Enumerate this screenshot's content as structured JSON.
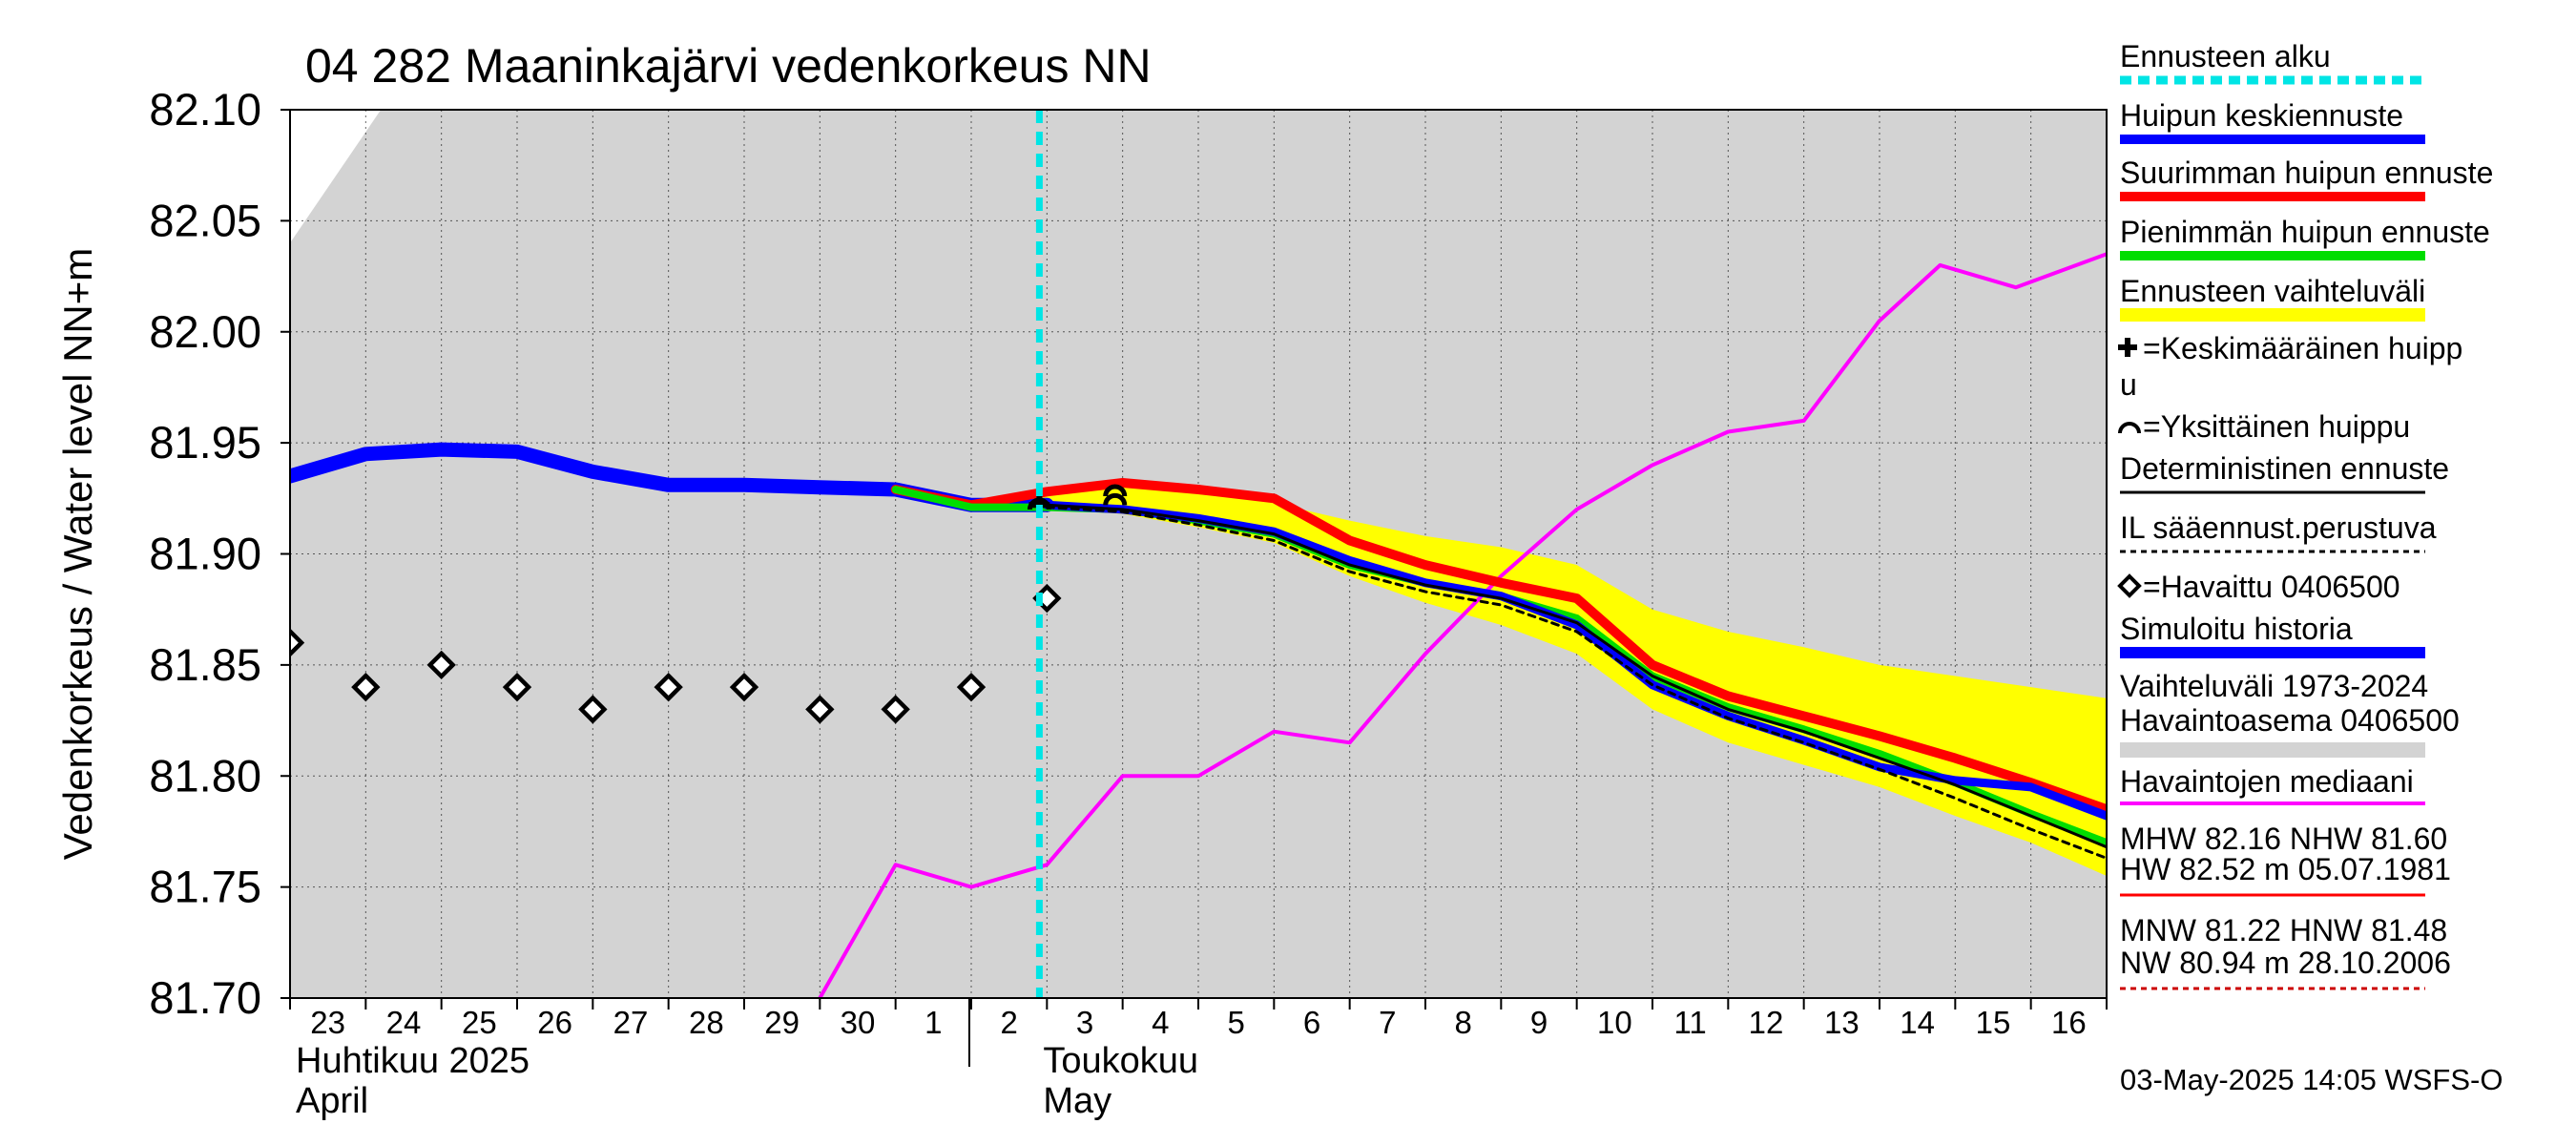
{
  "chart_data": {
    "type": "line",
    "title": "04 282 Maaninkajärvi vedenkorkeus NN",
    "ylabel": "Vedenkorkeus / Water level    NN+m",
    "ylim": [
      81.7,
      82.1
    ],
    "yticks": [
      "81.70",
      "81.75",
      "81.80",
      "81.85",
      "81.90",
      "81.95",
      "82.00",
      "82.05",
      "82.10"
    ],
    "x_start_day": 23,
    "x_end_day": 47,
    "x_tick_labels": [
      "23",
      "24",
      "25",
      "26",
      "27",
      "28",
      "29",
      "30",
      "1",
      "2",
      "3",
      "4",
      "5",
      "6",
      "7",
      "8",
      "9",
      "10",
      "11",
      "12",
      "13",
      "14",
      "15",
      "16"
    ],
    "months": [
      {
        "fi": "Huhtikuu  2025",
        "en": "April",
        "day": 23
      },
      {
        "fi": "Toukokuu",
        "en": "May",
        "day": 32
      }
    ],
    "forecast_start_day": 32.9,
    "historical_band": {
      "upper": [
        [
          23,
          82.04
        ],
        [
          24.2,
          82.1
        ],
        [
          47,
          82.1
        ]
      ],
      "lower": [
        [
          23,
          81.7
        ],
        [
          47,
          81.7
        ]
      ]
    },
    "forecast_band": {
      "upper": [
        [
          31,
          81.928
        ],
        [
          32,
          81.922
        ],
        [
          33,
          81.928
        ],
        [
          34,
          81.932
        ],
        [
          35,
          81.929
        ],
        [
          36,
          81.923
        ],
        [
          37,
          81.915
        ],
        [
          38,
          81.908
        ],
        [
          39,
          81.903
        ],
        [
          40,
          81.895
        ],
        [
          41,
          81.875
        ],
        [
          42,
          81.865
        ],
        [
          43,
          81.858
        ],
        [
          44,
          81.85
        ],
        [
          45,
          81.845
        ],
        [
          46,
          81.84
        ],
        [
          47,
          81.835
        ]
      ],
      "lower": [
        [
          31,
          81.928
        ],
        [
          32,
          81.92
        ],
        [
          33,
          81.92
        ],
        [
          34,
          81.918
        ],
        [
          35,
          81.912
        ],
        [
          36,
          81.905
        ],
        [
          37,
          81.89
        ],
        [
          38,
          81.878
        ],
        [
          39,
          81.868
        ],
        [
          40,
          81.855
        ],
        [
          41,
          81.83
        ],
        [
          42,
          81.815
        ],
        [
          43,
          81.805
        ],
        [
          44,
          81.795
        ],
        [
          45,
          81.782
        ],
        [
          46,
          81.77
        ],
        [
          47,
          81.755
        ]
      ]
    },
    "series": [
      {
        "name": "Havaintojen mediaani",
        "color": "#ff00ff",
        "points": [
          [
            30,
            81.7
          ],
          [
            31,
            81.76
          ],
          [
            32,
            81.75
          ],
          [
            33,
            81.76
          ],
          [
            34,
            81.8
          ],
          [
            35,
            81.8
          ],
          [
            36,
            81.82
          ],
          [
            37,
            81.815
          ],
          [
            38,
            81.855
          ],
          [
            39,
            81.89
          ],
          [
            40,
            81.92
          ],
          [
            41,
            81.94
          ],
          [
            42,
            81.955
          ],
          [
            43,
            81.96
          ],
          [
            44,
            82.005
          ],
          [
            44.8,
            82.03
          ],
          [
            45.8,
            82.02
          ],
          [
            47,
            82.035
          ]
        ]
      },
      {
        "name": "Simuloitu historia",
        "color": "#0000ff",
        "points": [
          [
            23,
            81.935
          ],
          [
            24,
            81.945
          ],
          [
            25,
            81.947
          ],
          [
            26,
            81.946
          ],
          [
            27,
            81.937
          ],
          [
            28,
            81.931
          ],
          [
            29,
            81.931
          ],
          [
            30,
            81.93
          ],
          [
            31,
            81.929
          ],
          [
            32,
            81.922
          ],
          [
            33,
            81.922
          ]
        ]
      },
      {
        "name": "Suurimman huipun ennuste",
        "color": "#ff0000",
        "points": [
          [
            31,
            81.929
          ],
          [
            32,
            81.922
          ],
          [
            33,
            81.928
          ],
          [
            34,
            81.932
          ],
          [
            35,
            81.929
          ],
          [
            36,
            81.925
          ],
          [
            37,
            81.906
          ],
          [
            38,
            81.895
          ],
          [
            39,
            81.887
          ],
          [
            40,
            81.88
          ],
          [
            41,
            81.85
          ],
          [
            42,
            81.836
          ],
          [
            43,
            81.827
          ],
          [
            44,
            81.818
          ],
          [
            45,
            81.808
          ],
          [
            46,
            81.797
          ],
          [
            47,
            81.785
          ]
        ]
      },
      {
        "name": "Pienimmän huipun ennuste",
        "color": "#00dd00",
        "points": [
          [
            31,
            81.929
          ],
          [
            32,
            81.921
          ],
          [
            33,
            81.921
          ],
          [
            34,
            81.92
          ],
          [
            35,
            81.915
          ],
          [
            36,
            81.909
          ],
          [
            37,
            81.895
          ],
          [
            38,
            81.887
          ],
          [
            39,
            81.881
          ],
          [
            40,
            81.871
          ],
          [
            41,
            81.845
          ],
          [
            42,
            81.831
          ],
          [
            43,
            81.821
          ],
          [
            44,
            81.81
          ],
          [
            45,
            81.797
          ],
          [
            46,
            81.783
          ],
          [
            47,
            81.77
          ]
        ]
      },
      {
        "name": "Huipun keskiennuste",
        "color": "#0000ff",
        "points": [
          [
            33,
            81.922
          ],
          [
            34,
            81.92
          ],
          [
            35,
            81.916
          ],
          [
            36,
            81.91
          ],
          [
            37,
            81.897
          ],
          [
            38,
            81.887
          ],
          [
            39,
            81.881
          ],
          [
            40,
            81.868
          ],
          [
            41,
            81.841
          ],
          [
            42,
            81.827
          ],
          [
            43,
            81.816
          ],
          [
            44,
            81.804
          ],
          [
            45,
            81.798
          ],
          [
            46,
            81.795
          ],
          [
            47,
            81.782
          ]
        ]
      },
      {
        "name": "Deterministinen ennuste",
        "color": "#000000",
        "points": [
          [
            33,
            81.922
          ],
          [
            34,
            81.92
          ],
          [
            35,
            81.915
          ],
          [
            36,
            81.909
          ],
          [
            37,
            81.895
          ],
          [
            38,
            81.886
          ],
          [
            39,
            81.88
          ],
          [
            40,
            81.869
          ],
          [
            41,
            81.845
          ],
          [
            42,
            81.83
          ],
          [
            43,
            81.82
          ],
          [
            44,
            81.808
          ],
          [
            45,
            81.796
          ],
          [
            46,
            81.782
          ],
          [
            47,
            81.768
          ]
        ]
      },
      {
        "name": "IL sääennust.perustuva",
        "color": "#000000",
        "points": [
          [
            33,
            81.921
          ],
          [
            34,
            81.919
          ],
          [
            35,
            81.913
          ],
          [
            36,
            81.906
          ],
          [
            37,
            81.892
          ],
          [
            38,
            81.883
          ],
          [
            39,
            81.877
          ],
          [
            40,
            81.865
          ],
          [
            41,
            81.841
          ],
          [
            42,
            81.826
          ],
          [
            43,
            81.815
          ],
          [
            44,
            81.803
          ],
          [
            45,
            81.79
          ],
          [
            46,
            81.776
          ],
          [
            47,
            81.763
          ]
        ]
      }
    ],
    "observed": {
      "name": "Havaittu 0406500",
      "points": [
        [
          23,
          81.86
        ],
        [
          24,
          81.84
        ],
        [
          25,
          81.85
        ],
        [
          26,
          81.84
        ],
        [
          27,
          81.83
        ],
        [
          28,
          81.84
        ],
        [
          29,
          81.84
        ],
        [
          30,
          81.83
        ],
        [
          31,
          81.83
        ],
        [
          32,
          81.84
        ],
        [
          33,
          81.88
        ]
      ]
    },
    "peaks": {
      "mean_peak": [
        [
          32.9,
          81.922
        ]
      ],
      "single_peaks": [
        [
          32.9,
          81.923
        ],
        [
          33.9,
          81.929
        ],
        [
          33.9,
          81.925
        ]
      ]
    },
    "legend": [
      "Ennusteen alku",
      "Huipun keskiennuste",
      "Suurimman huipun ennuste",
      "Pienimmän huipun ennuste",
      "Ennusteen vaihteluväli",
      "=Keskimääräinen huipp",
      "u",
      "=Yksittäinen huippu",
      "Deterministinen ennuste",
      "IL sääennust.perustuva",
      "=Havaittu 0406500",
      "Simuloitu historia",
      "Vaihteluväli 1973-2024",
      " Havaintoasema 0406500",
      "Havaintojen mediaani",
      "MHW  82.16 NHW  81.60",
      "HW  82.52 m 05.07.1981",
      "MNW  81.22 HNW  81.48",
      "NW  80.94 m 28.10.2006"
    ],
    "legend_colors": {
      "forecast_start": "#00e5e5",
      "mean": "#0000ff",
      "max": "#ff0000",
      "min": "#00dd00",
      "band": "#ffff00",
      "deterministic": "#000000",
      "history": "#0000ff",
      "hist_band": "#d3d3d3",
      "median": "#ff00ff",
      "hw": "#ff0000",
      "nw": "#cc0000"
    },
    "footer": "03-May-2025 14:05 WSFS-O"
  }
}
